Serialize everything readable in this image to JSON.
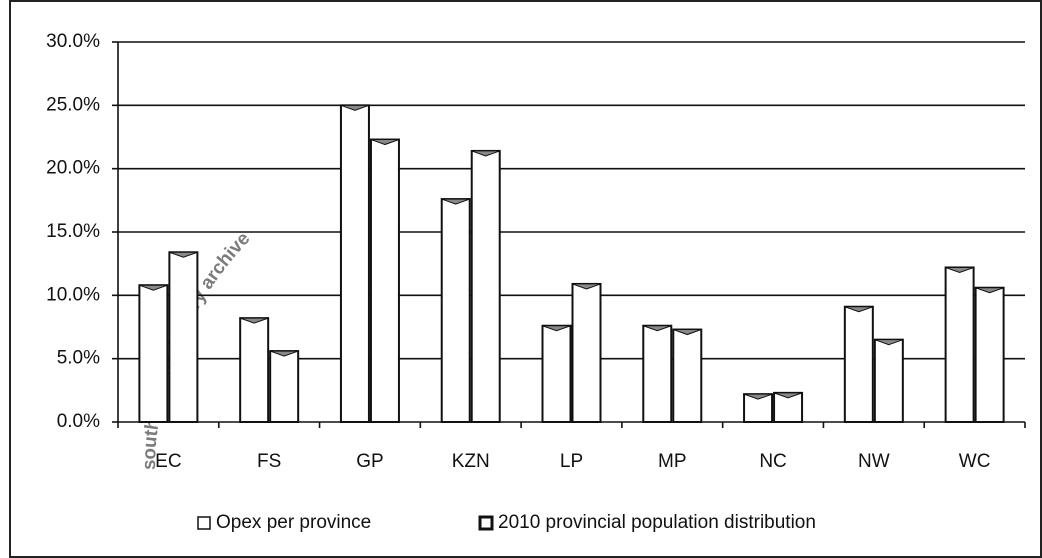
{
  "chart_data": {
    "type": "bar",
    "categories": [
      "EC",
      "FS",
      "GP",
      "KZN",
      "LP",
      "MP",
      "NC",
      "NW",
      "WC"
    ],
    "series": [
      {
        "name": "Opex per province",
        "color": "#ffffff",
        "values": [
          10.8,
          8.2,
          25.0,
          17.6,
          7.6,
          7.6,
          2.2,
          9.1,
          12.2
        ]
      },
      {
        "name": "2010 provincial population distribution",
        "color": "#ffffff",
        "values": [
          13.4,
          5.6,
          22.3,
          21.4,
          10.9,
          7.3,
          2.3,
          6.5,
          10.6
        ]
      }
    ],
    "ylim": [
      0,
      30
    ],
    "yticks": [
      {
        "value": 0,
        "label": "0.0%"
      },
      {
        "value": 5,
        "label": "5.0%"
      },
      {
        "value": 10,
        "label": "10.0%"
      },
      {
        "value": 15,
        "label": "15.0%"
      },
      {
        "value": 20,
        "label": "20.0%"
      },
      {
        "value": 25,
        "label": "25.0%"
      },
      {
        "value": 30,
        "label": "30.0%"
      }
    ],
    "grid": true,
    "legend": "bottom",
    "watermark": "south african history archive"
  }
}
